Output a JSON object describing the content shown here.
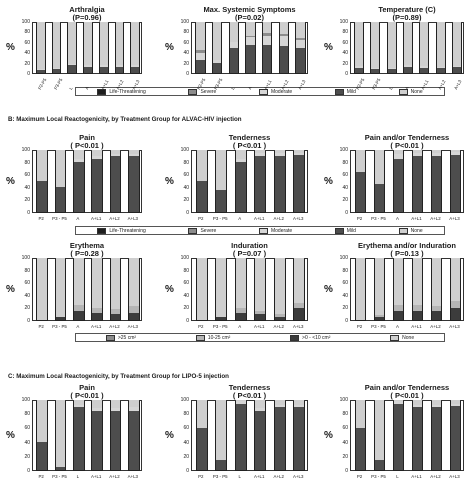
{
  "sections": [
    {
      "id": "b",
      "text": "B: Maximum Local Reactogenicity, by Treatment Group for ALVAC-HIV injection"
    },
    {
      "id": "c",
      "text": "C: Maximum Local Reactogenicity, by Treatment Group for LIPO-5 injection"
    }
  ],
  "colors": {
    "Life-Threatening": "#1e1e1e",
    "Severe": "#8c8c8c",
    "Moderate": "#d6d6d6",
    "Mild": "#4d4d4d",
    "None": "#cfcfcf",
    ">25 cm²": "#8c8c8c",
    "10-25 cm²": "#b5b5b5",
    ">0 - <10 cm²": "#3c3c3c",
    "None2": "#cfcfcf"
  },
  "legends": [
    {
      "id": "legend-1",
      "items": [
        "Life-Threatening",
        "Severe",
        "Moderate",
        "Mild",
        "None"
      ]
    },
    {
      "id": "legend-2",
      "items": [
        "Life-Threatening",
        "Severe",
        "Moderate",
        "Mild",
        "None"
      ]
    },
    {
      "id": "legend-3",
      "items": [
        ">25 cm²",
        "10-25 cm²",
        ">0 - <10 cm²",
        "None"
      ]
    }
  ],
  "y_ticks": [
    "0",
    "20",
    "40",
    "60",
    "80",
    "100"
  ],
  "y_label": "%",
  "chart_data": [
    {
      "id": "arthralgia",
      "type": "bar",
      "stacked": true,
      "title": "Arthralgia",
      "subtitle": "(P=0.96)",
      "categories": [
        "P2-P5",
        "P3-P5",
        "L",
        "A",
        "A+L1",
        "A+L2",
        "A+L3"
      ],
      "series": [
        {
          "name": "Mild",
          "values": [
            5,
            7,
            15,
            12,
            12,
            12,
            12
          ]
        },
        {
          "name": "Moderate",
          "values": [
            2,
            2,
            3,
            3,
            3,
            3,
            3
          ]
        },
        {
          "name": "None",
          "values": [
            93,
            91,
            82,
            85,
            85,
            85,
            85
          ]
        }
      ],
      "ylim": [
        0,
        100
      ]
    },
    {
      "id": "max-systemic",
      "type": "bar",
      "stacked": true,
      "title": "Max. Systemic Symptoms",
      "subtitle": "(P=0.02)",
      "categories": [
        "P2-P5",
        "P3-P5",
        "L",
        "A",
        "A+L1",
        "A+L2",
        "A+L3"
      ],
      "series": [
        {
          "name": "Mild",
          "values": [
            25,
            20,
            50,
            55,
            55,
            52,
            50
          ]
        },
        {
          "name": "Moderate",
          "values": [
            15,
            5,
            10,
            15,
            18,
            20,
            15
          ]
        },
        {
          "name": "Severe",
          "values": [
            5,
            0,
            0,
            3,
            5,
            5,
            3
          ]
        },
        {
          "name": "None",
          "values": [
            55,
            75,
            40,
            27,
            22,
            23,
            32
          ]
        }
      ],
      "ylim": [
        0,
        100
      ]
    },
    {
      "id": "temperature",
      "type": "bar",
      "stacked": true,
      "title": "Temperature (C)",
      "subtitle": "(P=0.89)",
      "categories": [
        "P2-P5",
        "P3-P5",
        "L",
        "A",
        "A+L1",
        "A+L2",
        "A+L3"
      ],
      "series": [
        {
          "name": "Mild",
          "values": [
            10,
            7,
            8,
            12,
            10,
            10,
            12
          ]
        },
        {
          "name": "Moderate",
          "values": [
            3,
            3,
            2,
            3,
            3,
            2,
            2
          ]
        },
        {
          "name": "None",
          "values": [
            87,
            90,
            90,
            85,
            87,
            88,
            86
          ]
        }
      ],
      "ylim": [
        0,
        100
      ]
    },
    {
      "id": "pain-alvac",
      "type": "bar",
      "stacked": true,
      "title": "Pain",
      "subtitle": "( P<0.01 )",
      "categories": [
        "P2",
        "P3 - P5",
        "A",
        "A+L1",
        "A+L2",
        "A+L3"
      ],
      "series": [
        {
          "name": "Mild",
          "values": [
            50,
            40,
            80,
            85,
            90,
            90
          ]
        },
        {
          "name": "Moderate",
          "values": [
            0,
            0,
            5,
            5,
            3,
            3
          ]
        },
        {
          "name": "None",
          "values": [
            50,
            60,
            15,
            10,
            7,
            7
          ]
        }
      ],
      "ylim": [
        0,
        100
      ]
    },
    {
      "id": "tenderness-alvac",
      "type": "bar",
      "stacked": true,
      "title": "Tenderness",
      "subtitle": "( P<0.01 )",
      "categories": [
        "P2",
        "P3 - P5",
        "A",
        "A+L1",
        "A+L2",
        "A+L3"
      ],
      "series": [
        {
          "name": "Mild",
          "values": [
            50,
            35,
            80,
            90,
            90,
            92
          ]
        },
        {
          "name": "Moderate",
          "values": [
            0,
            0,
            5,
            5,
            5,
            3
          ]
        },
        {
          "name": "None",
          "values": [
            50,
            65,
            15,
            5,
            5,
            5
          ]
        }
      ],
      "ylim": [
        0,
        100
      ]
    },
    {
      "id": "pain-tenderness-alvac",
      "type": "bar",
      "stacked": true,
      "title": "Pain and/or Tenderness",
      "subtitle": "( P<0.01 )",
      "categories": [
        "P2",
        "P3 - P5",
        "A",
        "A+L1",
        "A+L2",
        "A+L3"
      ],
      "series": [
        {
          "name": "Mild",
          "values": [
            65,
            45,
            85,
            90,
            90,
            92
          ]
        },
        {
          "name": "Moderate",
          "values": [
            0,
            0,
            8,
            5,
            5,
            5
          ]
        },
        {
          "name": "None",
          "values": [
            35,
            55,
            7,
            5,
            5,
            3
          ]
        }
      ],
      "ylim": [
        0,
        100
      ]
    },
    {
      "id": "erythema-alvac",
      "type": "bar",
      "stacked": true,
      "title": "Erythema",
      "subtitle": "( P=0.28 )",
      "categories": [
        "P2",
        "P3 - P5",
        "A",
        "A+L1",
        "A+L2",
        "A+L3"
      ],
      "series": [
        {
          "name": ">0 - <10 cm²",
          "values": [
            0,
            5,
            15,
            12,
            10,
            12
          ]
        },
        {
          "name": "10-25 cm²",
          "values": [
            0,
            0,
            10,
            8,
            7,
            10
          ]
        },
        {
          "name": "None",
          "values": [
            100,
            95,
            75,
            80,
            83,
            78
          ]
        }
      ],
      "ylim": [
        0,
        100
      ]
    },
    {
      "id": "induration-alvac",
      "type": "bar",
      "stacked": true,
      "title": "Induration",
      "subtitle": "( P=0.07 )",
      "categories": [
        "P2",
        "P3 - P5",
        "A",
        "A+L1",
        "A+L2",
        "A+L3"
      ],
      "series": [
        {
          "name": ">0 - <10 cm²",
          "values": [
            0,
            5,
            12,
            10,
            5,
            20
          ]
        },
        {
          "name": "10-25 cm²",
          "values": [
            0,
            0,
            8,
            5,
            5,
            8
          ]
        },
        {
          "name": "None",
          "values": [
            100,
            95,
            80,
            85,
            90,
            72
          ]
        }
      ],
      "ylim": [
        0,
        100
      ]
    },
    {
      "id": "erythema-induration-alvac",
      "type": "bar",
      "stacked": true,
      "title": "Erythema and/or Induration",
      "subtitle": "( P=0.13 )",
      "categories": [
        "P2",
        "P3 - P5",
        "A",
        "A+L1",
        "A+L2",
        "A+L3"
      ],
      "series": [
        {
          "name": ">0 - <10 cm²",
          "values": [
            0,
            5,
            15,
            15,
            15,
            20
          ]
        },
        {
          "name": "10-25 cm²",
          "values": [
            0,
            3,
            10,
            10,
            8,
            10
          ]
        },
        {
          "name": "None",
          "values": [
            100,
            92,
            75,
            75,
            77,
            70
          ]
        }
      ],
      "ylim": [
        0,
        100
      ]
    },
    {
      "id": "pain-lipo",
      "type": "bar",
      "stacked": true,
      "title": "Pain",
      "subtitle": "( P<0.01 )",
      "categories": [
        "P2",
        "P3 - P5",
        "L",
        "A+L1",
        "A+L2",
        "A+L3"
      ],
      "series": [
        {
          "name": "Mild",
          "values": [
            40,
            5,
            90,
            85,
            85,
            85
          ]
        },
        {
          "name": "Moderate",
          "values": [
            0,
            0,
            3,
            3,
            3,
            5
          ]
        },
        {
          "name": "None",
          "values": [
            60,
            95,
            7,
            12,
            12,
            10
          ]
        }
      ],
      "ylim": [
        0,
        100
      ]
    },
    {
      "id": "tenderness-lipo",
      "type": "bar",
      "stacked": true,
      "title": "Tenderness",
      "subtitle": "( P<0.01 )",
      "categories": [
        "P2",
        "P3 - P5",
        "L",
        "A+L1",
        "A+L2",
        "A+L3"
      ],
      "series": [
        {
          "name": "Mild",
          "values": [
            60,
            15,
            95,
            85,
            90,
            90
          ]
        },
        {
          "name": "Moderate",
          "values": [
            0,
            0,
            3,
            3,
            3,
            3
          ]
        },
        {
          "name": "None",
          "values": [
            40,
            85,
            2,
            12,
            7,
            7
          ]
        }
      ],
      "ylim": [
        0,
        100
      ]
    },
    {
      "id": "pain-tenderness-lipo",
      "type": "bar",
      "stacked": true,
      "title": "Pain and/or Tenderness",
      "subtitle": "( P<0.01 )",
      "categories": [
        "P2",
        "P3 - P5",
        "L",
        "A+L1",
        "A+L2",
        "A+L3"
      ],
      "series": [
        {
          "name": "Mild",
          "values": [
            60,
            15,
            95,
            90,
            90,
            92
          ]
        },
        {
          "name": "Moderate",
          "values": [
            0,
            0,
            3,
            3,
            3,
            3
          ]
        },
        {
          "name": "None",
          "values": [
            40,
            85,
            2,
            7,
            7,
            5
          ]
        }
      ],
      "ylim": [
        0,
        100
      ]
    }
  ]
}
